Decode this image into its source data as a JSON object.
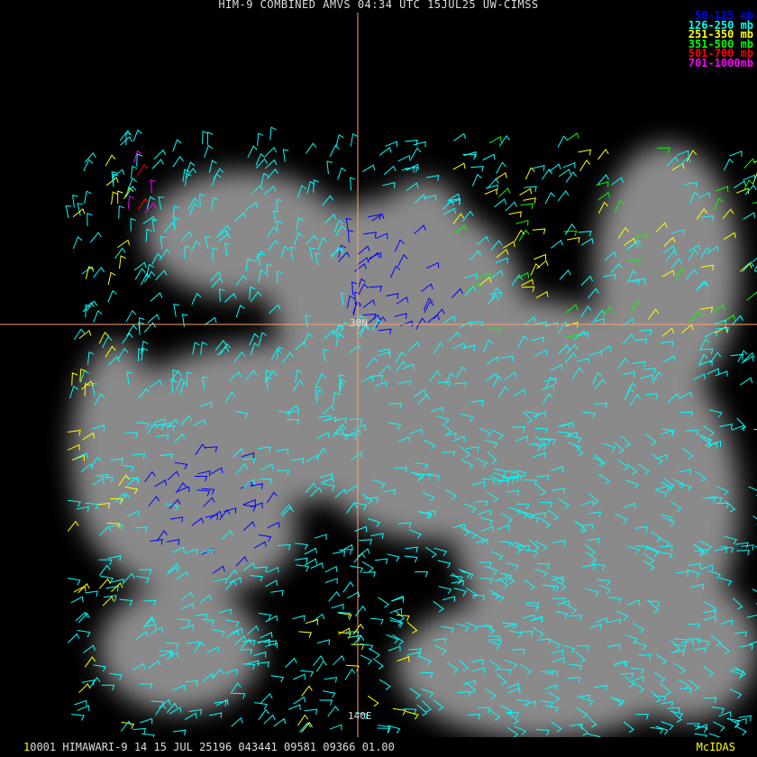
{
  "title": "HIM-9 COMBINED AMVS 04:34 UTC 15JUL25 UW-CIMSS",
  "legend": [
    {
      "label": "50-125 mb",
      "color": "#0000ff"
    },
    {
      "label": "126-250 mb",
      "color": "#00ffff"
    },
    {
      "label": "251-350 mb",
      "color": "#ffff00"
    },
    {
      "label": "351-500 mb",
      "color": "#00ff00"
    },
    {
      "label": "501-700 mb",
      "color": "#ff0000"
    },
    {
      "label": "701-1000mb",
      "color": "#ff00ff"
    }
  ],
  "grid_labels": {
    "latitude": "30N",
    "longitude": "140E"
  },
  "grid_line_color": "#ffa070",
  "footer": {
    "frame_index": "1",
    "info": "0001 HIMAWARI-9 14 15 JUL 25196 043441 09581 09366 01.00",
    "brand": "McIDAS"
  }
}
